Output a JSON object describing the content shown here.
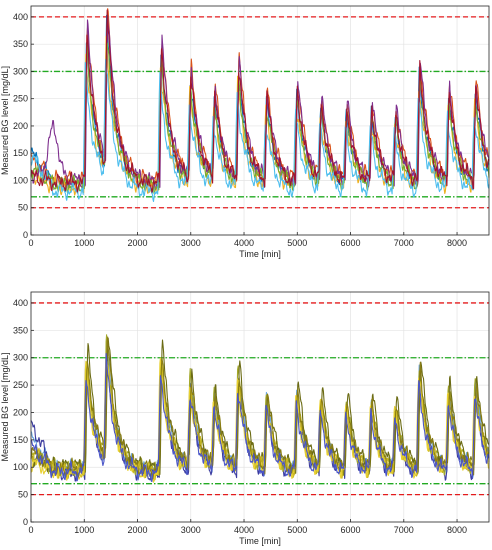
{
  "chart_data": [
    {
      "type": "line",
      "xlabel": "Time [min]",
      "ylabel": "Measured BG level [mg/dL]",
      "xlim": [
        0,
        8600
      ],
      "ylim": [
        0,
        420
      ],
      "xticks": [
        0,
        1000,
        2000,
        3000,
        4000,
        5000,
        6000,
        7000,
        8000
      ],
      "yticks": [
        0,
        50,
        100,
        150,
        200,
        250,
        300,
        350,
        400
      ],
      "grid": true,
      "hlines": [
        {
          "y": 400,
          "color": "#e41a1c",
          "style": "dashed"
        },
        {
          "y": 300,
          "color": "#22aa22",
          "style": "dashdot"
        },
        {
          "y": 70,
          "color": "#22aa22",
          "style": "dashdot"
        },
        {
          "y": 50,
          "color": "#e41a1c",
          "style": "dashed"
        }
      ],
      "series_colors": [
        "#0072BD",
        "#D95319",
        "#EDB120",
        "#7E2F8E",
        "#77AC30",
        "#4DBEEE",
        "#A2142F"
      ],
      "meals": [
        [
          1000,
          330
        ],
        [
          1380,
          330
        ],
        [
          2400,
          300
        ],
        [
          2950,
          230
        ],
        [
          3400,
          190
        ],
        [
          3850,
          255
        ],
        [
          4380,
          190
        ],
        [
          4950,
          210
        ],
        [
          5400,
          170
        ],
        [
          5880,
          170
        ],
        [
          6350,
          165
        ],
        [
          6800,
          155
        ],
        [
          7250,
          255
        ],
        [
          7800,
          200
        ],
        [
          8300,
          210
        ]
      ],
      "base": 95,
      "x": [
        0,
        50,
        100,
        150,
        200,
        250,
        300,
        350,
        400,
        450,
        500,
        550,
        600,
        650,
        700,
        750,
        800,
        850,
        900,
        950,
        1000,
        1050,
        1100,
        1150,
        1200,
        1250,
        1300,
        1350,
        1400,
        1450,
        1500,
        1550,
        1600,
        1650,
        1700,
        1750,
        1800,
        1850,
        1900,
        1950,
        2000,
        2050,
        2100,
        2150,
        2200,
        2250,
        2300,
        2350,
        2400,
        2450,
        2500,
        2550,
        2600,
        2650,
        2700,
        2750,
        2800,
        2850,
        2900,
        2950,
        3000,
        3050,
        3100,
        3150,
        3200,
        3250,
        3300,
        3350,
        3400,
        3450,
        3500,
        3550,
        3600,
        3650,
        3700,
        3750,
        3800,
        3850,
        3900,
        3950,
        4000,
        4050,
        4100,
        4150,
        4200,
        4250,
        4300,
        4350,
        4400,
        4450,
        4500,
        4550,
        4600,
        4650,
        4700,
        4750,
        4800,
        4850,
        4900,
        4950,
        5000,
        5050,
        5100,
        5150,
        5200,
        5250,
        5300,
        5350,
        5400,
        5450,
        5500,
        5550,
        5600,
        5650,
        5700,
        5750,
        5800,
        5850,
        5900,
        5950,
        6000,
        6050,
        6100,
        6150,
        6200,
        6250,
        6300,
        6350,
        6400,
        6450,
        6500,
        6550,
        6600,
        6650,
        6700,
        6750,
        6800,
        6850,
        6900,
        6950,
        7000,
        7050,
        7100,
        7150,
        7200,
        7250,
        7300,
        7350,
        7400,
        7450,
        7500,
        7550,
        7600,
        7650,
        7700,
        7750,
        7800,
        7850,
        7900,
        7950,
        8000,
        8050,
        8100,
        8150,
        8200,
        8250,
        8300,
        8350,
        8400,
        8450,
        8500,
        8550,
        8600
      ],
      "series": [
        {
          "scale": 1.0,
          "offset": 0,
          "lag": 0,
          "p": 0.0,
          "init": 150,
          "bump": 0
        },
        {
          "scale": 1.12,
          "offset": 6,
          "lag": 15,
          "p": 1.3,
          "init": 135,
          "bump": 0
        },
        {
          "scale": 0.92,
          "offset": -6,
          "lag": -10,
          "p": 2.1,
          "init": 120,
          "bump": 0
        },
        {
          "scale": 1.08,
          "offset": 4,
          "lag": 20,
          "p": 3.7,
          "init": 110,
          "bump": 95
        },
        {
          "scale": 0.95,
          "offset": -2,
          "lag": 5,
          "p": 4.4,
          "init": 125,
          "bump": 0
        },
        {
          "scale": 0.85,
          "offset": -14,
          "lag": -20,
          "p": 5.2,
          "init": 160,
          "bump": 0
        },
        {
          "scale": 1.05,
          "offset": 2,
          "lag": 10,
          "p": 6.3,
          "init": 105,
          "bump": 0
        }
      ]
    },
    {
      "type": "line",
      "xlabel": "Time [min]",
      "ylabel": "Measured BG level [mg/dL]",
      "xlim": [
        0,
        8600
      ],
      "ylim": [
        0,
        420
      ],
      "xticks": [
        0,
        1000,
        2000,
        3000,
        4000,
        5000,
        6000,
        7000,
        8000
      ],
      "yticks": [
        0,
        50,
        100,
        150,
        200,
        250,
        300,
        350,
        400
      ],
      "grid": true,
      "hlines": [
        {
          "y": 400,
          "color": "#e41a1c",
          "style": "dashed"
        },
        {
          "y": 300,
          "color": "#22aa22",
          "style": "dashdot"
        },
        {
          "y": 70,
          "color": "#22aa22",
          "style": "dashdot"
        },
        {
          "y": 50,
          "color": "#e41a1c",
          "style": "dashed"
        }
      ],
      "series_colors": [
        "#6aa6e0",
        "#3b3b9e",
        "#a3a82a",
        "#6b6b14",
        "#c9b71f",
        "#e8d030",
        "#8a7d14",
        "#4a55c8"
      ],
      "meals": [
        [
          1000,
          240
        ],
        [
          1380,
          255
        ],
        [
          2400,
          250
        ],
        [
          2950,
          190
        ],
        [
          3400,
          160
        ],
        [
          3850,
          210
        ],
        [
          4380,
          160
        ],
        [
          4950,
          175
        ],
        [
          5400,
          155
        ],
        [
          5880,
          150
        ],
        [
          6350,
          150
        ],
        [
          6800,
          140
        ],
        [
          7250,
          220
        ],
        [
          7800,
          175
        ],
        [
          8300,
          190
        ]
      ],
      "base": 95,
      "x": [
        0,
        50,
        100,
        150,
        200,
        250,
        300,
        350,
        400,
        450,
        500,
        550,
        600,
        650,
        700,
        750,
        800,
        850,
        900,
        950,
        1000,
        1050,
        1100,
        1150,
        1200,
        1250,
        1300,
        1350,
        1400,
        1450,
        1500,
        1550,
        1600,
        1650,
        1700,
        1750,
        1800,
        1850,
        1900,
        1950,
        2000,
        2050,
        2100,
        2150,
        2200,
        2250,
        2300,
        2350,
        2400,
        2450,
        2500,
        2550,
        2600,
        2650,
        2700,
        2750,
        2800,
        2850,
        2900,
        2950,
        3000,
        3050,
        3100,
        3150,
        3200,
        3250,
        3300,
        3350,
        3400,
        3450,
        3500,
        3550,
        3600,
        3650,
        3700,
        3750,
        3800,
        3850,
        3900,
        3950,
        4000,
        4050,
        4100,
        4150,
        4200,
        4250,
        4300,
        4350,
        4400,
        4450,
        4500,
        4550,
        4600,
        4650,
        4700,
        4750,
        4800,
        4850,
        4900,
        4950,
        5000,
        5050,
        5100,
        5150,
        5200,
        5250,
        5300,
        5350,
        5400,
        5450,
        5500,
        5550,
        5600,
        5650,
        5700,
        5750,
        5800,
        5850,
        5900,
        5950,
        6000,
        6050,
        6100,
        6150,
        6200,
        6250,
        6300,
        6350,
        6400,
        6450,
        6500,
        6550,
        6600,
        6650,
        6700,
        6750,
        6800,
        6850,
        6900,
        6950,
        7000,
        7050,
        7100,
        7150,
        7200,
        7250,
        7300,
        7350,
        7400,
        7450,
        7500,
        7550,
        7600,
        7650,
        7700,
        7750,
        7800,
        7850,
        7900,
        7950,
        8000,
        8050,
        8100,
        8150,
        8200,
        8250,
        8300,
        8350,
        8400,
        8450,
        8500,
        8550,
        8600
      ],
      "series": [
        {
          "scale": 1.05,
          "offset": 2,
          "lag": 0,
          "p": 0.4,
          "init": 150,
          "bump": 0
        },
        {
          "scale": 0.96,
          "offset": -4,
          "lag": 10,
          "p": 1.6,
          "init": 185,
          "bump": 0
        },
        {
          "scale": 1.1,
          "offset": 4,
          "lag": -5,
          "p": 2.5,
          "init": 120,
          "bump": 0
        },
        {
          "scale": 1.16,
          "offset": 6,
          "lag": 25,
          "p": 3.3,
          "init": 115,
          "bump": 0
        },
        {
          "scale": 0.98,
          "offset": 0,
          "lag": 5,
          "p": 4.1,
          "init": 130,
          "bump": 0
        },
        {
          "scale": 1.02,
          "offset": -2,
          "lag": -15,
          "p": 5.0,
          "init": 110,
          "bump": 0
        },
        {
          "scale": 1.08,
          "offset": 3,
          "lag": 15,
          "p": 5.8,
          "init": 125,
          "bump": 0
        },
        {
          "scale": 0.94,
          "offset": -3,
          "lag": -8,
          "p": 6.6,
          "init": 140,
          "bump": 0
        }
      ]
    }
  ]
}
